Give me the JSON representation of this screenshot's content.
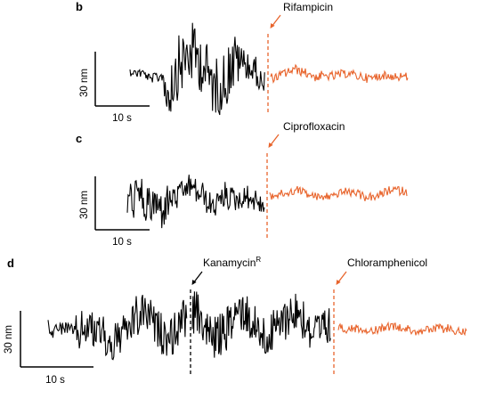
{
  "colors": {
    "before_trace": "#000000",
    "after_trace": "#e8642c",
    "marker_black": "#000000",
    "marker_orange": "#e8642c"
  },
  "panels": {
    "b": {
      "letter": "b",
      "annotation": "Rifampicin",
      "scale_y": "30 nm",
      "scale_x": "10 s"
    },
    "c": {
      "letter": "c",
      "annotation": "Ciprofloxacin",
      "scale_y": "30 nm",
      "scale_x": "10 s"
    },
    "d": {
      "letter": "d",
      "annotation_1": "Kanamycin",
      "annotation_1_sup": "R",
      "annotation_2": "Chloramphenicol",
      "scale_y": "30 nm",
      "scale_x": "10 s"
    }
  },
  "chart_data": [
    {
      "type": "line",
      "panel": "b",
      "annotation": "Rifampicin",
      "scale_bars": {
        "y": "30 nm",
        "x": "10 s"
      },
      "event_marker": "Rifampicin",
      "series": [
        {
          "segment": "before drug",
          "color": "#000000",
          "duration_s": 19,
          "fluctuation_nm_pp": 80
        },
        {
          "segment": "after drug",
          "color": "#e8642c",
          "duration_s": 19,
          "fluctuation_nm_pp": 15
        }
      ]
    },
    {
      "type": "line",
      "panel": "c",
      "annotation": "Ciprofloxacin",
      "scale_bars": {
        "y": "30 nm",
        "x": "10 s"
      },
      "event_marker": "Ciprofloxacin",
      "series": [
        {
          "segment": "before drug",
          "color": "#000000",
          "duration_s": 19,
          "fluctuation_nm_pp": 55
        },
        {
          "segment": "after drug",
          "color": "#e8642c",
          "duration_s": 19,
          "fluctuation_nm_pp": 15
        }
      ]
    },
    {
      "type": "line",
      "panel": "d",
      "annotations": [
        "Kanamycin R",
        "Chloramphenicol"
      ],
      "scale_bars": {
        "y": "30 nm",
        "x": "10 s"
      },
      "series": [
        {
          "segment": "before kanamycin",
          "color": "#000000",
          "duration_s": 20,
          "fluctuation_nm_pp": 60
        },
        {
          "segment": "after kanamycin",
          "color": "#000000",
          "duration_s": 19,
          "fluctuation_nm_pp": 65
        },
        {
          "segment": "after chloramphenicol",
          "color": "#e8642c",
          "duration_s": 18,
          "fluctuation_nm_pp": 15
        }
      ]
    }
  ]
}
